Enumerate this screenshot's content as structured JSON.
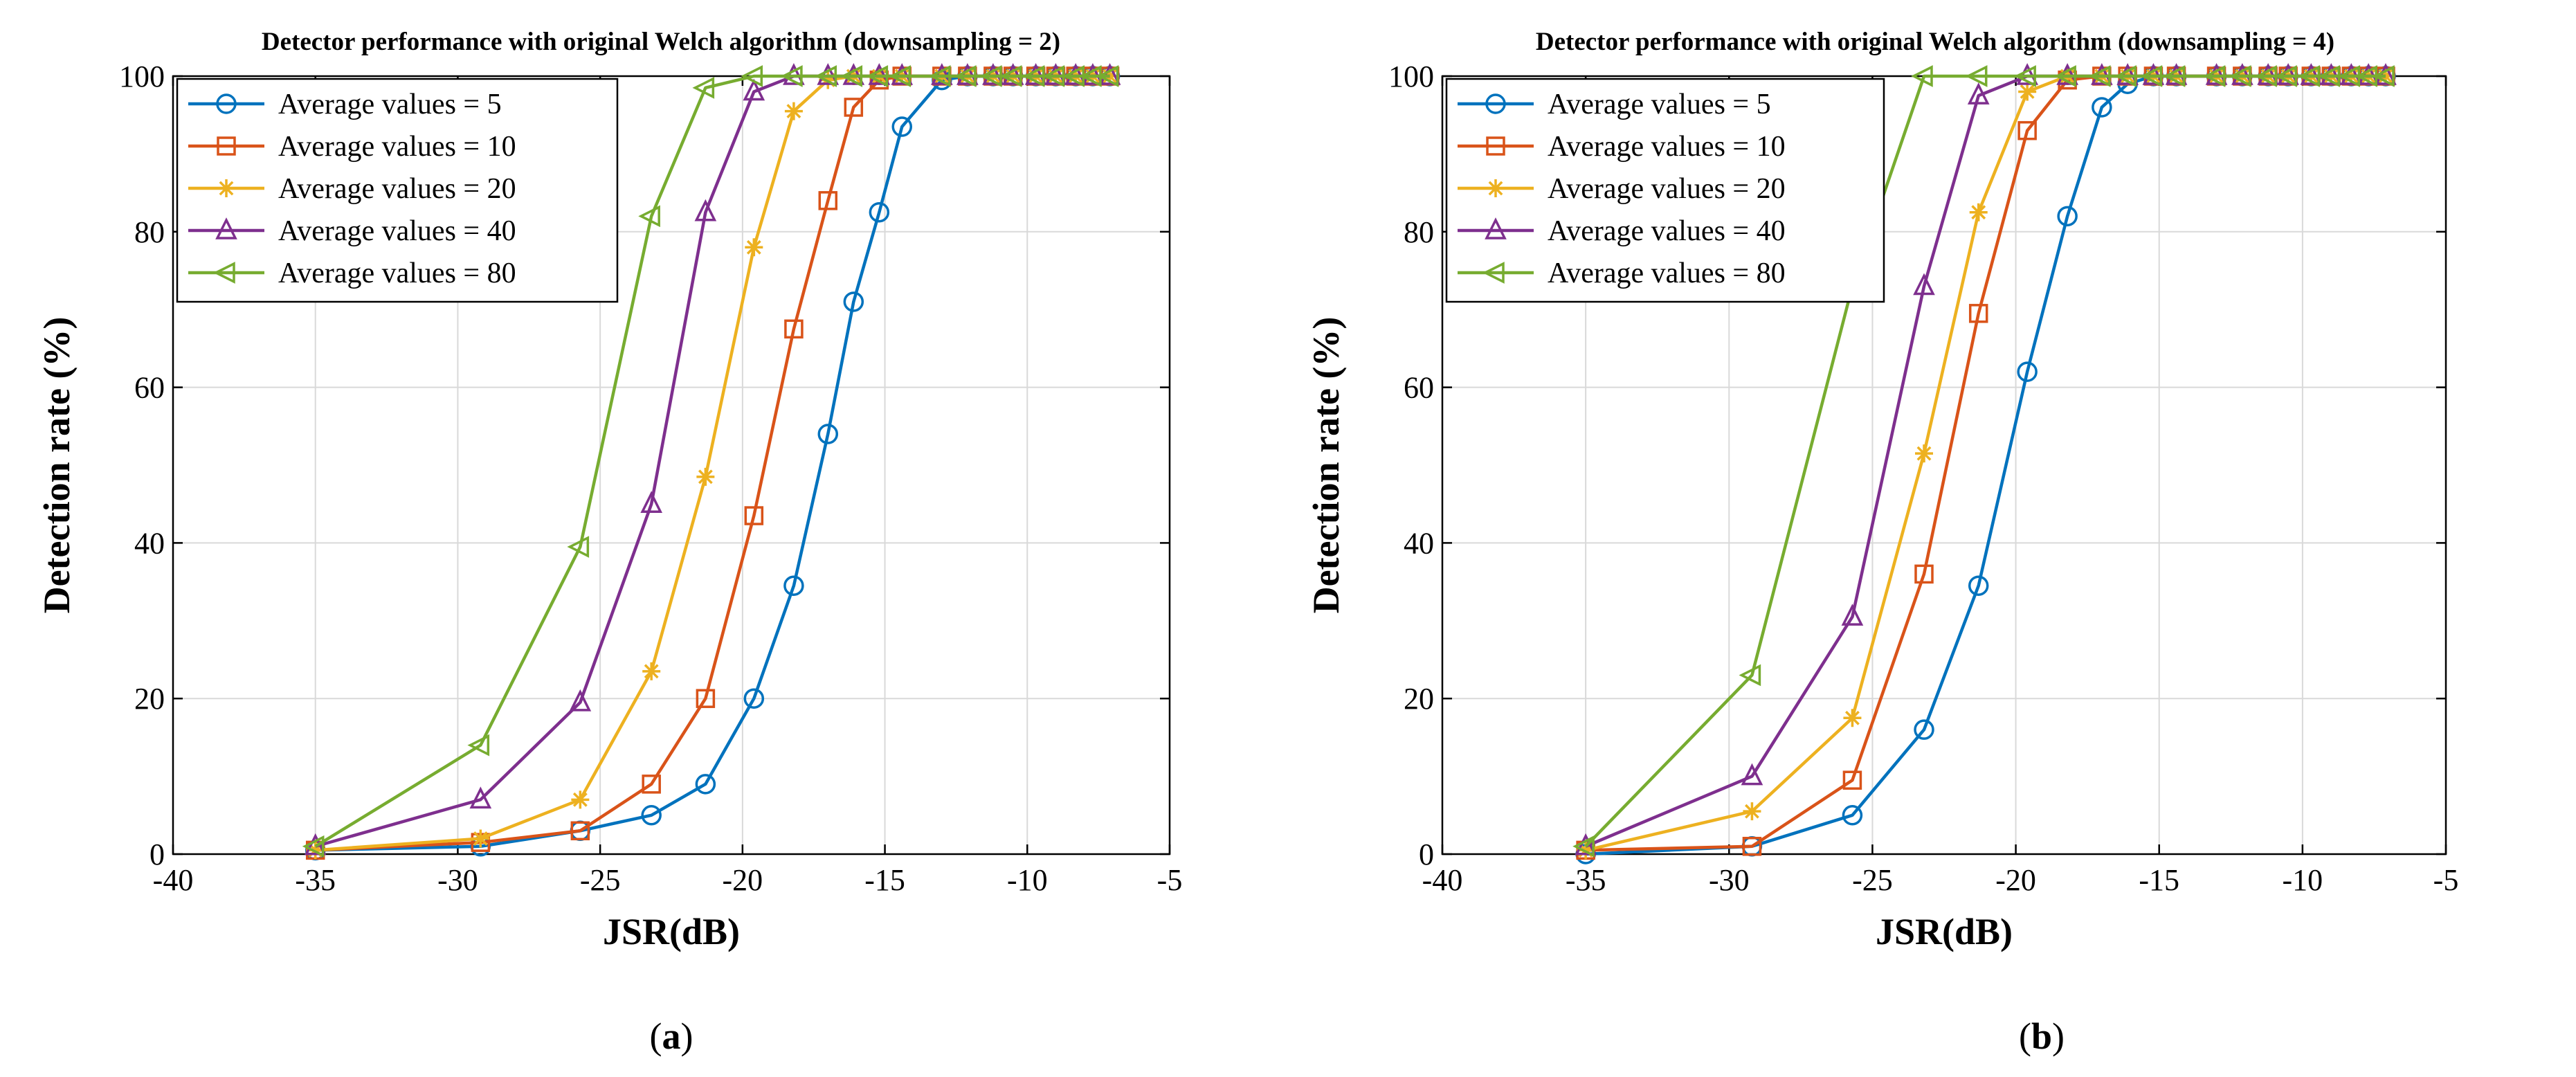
{
  "chart_data": [
    {
      "type": "line",
      "panel_label": "a",
      "title": "Detector performance with original Welch algorithm (downsampling = 2)",
      "xlabel": "JSR(dB)",
      "ylabel": "Detection rate (%)",
      "xlim": [
        -40,
        -5
      ],
      "ylim": [
        0,
        100
      ],
      "xticks": [
        -40,
        -35,
        -30,
        -25,
        -20,
        -15,
        -10,
        -5
      ],
      "yticks": [
        0,
        20,
        40,
        60,
        80,
        100
      ],
      "grid": true,
      "legend_position": "top-left",
      "series": [
        {
          "name": "Average values = 5",
          "color": "#0072BD",
          "marker": "circle",
          "x": [
            -35,
            -29.2,
            -25.7,
            -23.2,
            -21.3,
            -19.6,
            -18.2,
            -17.0,
            -16.1,
            -15.2,
            -14.4,
            -13.0,
            -12.1,
            -11.2,
            -10.5,
            -9.7,
            -9.0,
            -8.3,
            -7.7,
            -7.1
          ],
          "y": [
            0.5,
            1,
            3,
            5,
            9,
            20,
            34.5,
            54,
            71,
            82.5,
            93.5,
            99.5,
            100,
            100,
            100,
            100,
            100,
            100,
            100,
            100
          ]
        },
        {
          "name": "Average values = 10",
          "color": "#D95319",
          "marker": "square",
          "x": [
            -35,
            -29.2,
            -25.7,
            -23.2,
            -21.3,
            -19.6,
            -18.2,
            -17.0,
            -16.1,
            -15.2,
            -14.4,
            -13.0,
            -12.1,
            -11.2,
            -10.5,
            -9.7,
            -9.0,
            -8.3,
            -7.7,
            -7.1
          ],
          "y": [
            0.5,
            1.5,
            3,
            9,
            20,
            43.5,
            67.5,
            84,
            96,
            99.5,
            100,
            100,
            100,
            100,
            100,
            100,
            100,
            100,
            100,
            100
          ]
        },
        {
          "name": "Average values = 20",
          "color": "#EDB120",
          "marker": "star",
          "x": [
            -35,
            -29.2,
            -25.7,
            -23.2,
            -21.3,
            -19.6,
            -18.2,
            -17.0,
            -16.1,
            -15.2,
            -14.4,
            -13.0,
            -12.1,
            -11.2,
            -10.5,
            -9.7,
            -9.0,
            -8.3,
            -7.7,
            -7.1
          ],
          "y": [
            0.5,
            2,
            7,
            23.5,
            48.5,
            78,
            95.5,
            99.5,
            100,
            100,
            100,
            100,
            100,
            100,
            100,
            100,
            100,
            100,
            100,
            100
          ]
        },
        {
          "name": "Average values = 40",
          "color": "#7E2F8E",
          "marker": "triangle-up",
          "x": [
            -35,
            -29.2,
            -25.7,
            -23.2,
            -21.3,
            -19.6,
            -18.2,
            -17.0,
            -16.1,
            -15.2,
            -14.4,
            -13.0,
            -12.1,
            -11.2,
            -10.5,
            -9.7,
            -9.0,
            -8.3,
            -7.7,
            -7.1
          ],
          "y": [
            1,
            7,
            19.5,
            45,
            82.5,
            98,
            100,
            100,
            100,
            100,
            100,
            100,
            100,
            100,
            100,
            100,
            100,
            100,
            100,
            100
          ]
        },
        {
          "name": "Average values = 80",
          "color": "#77AC30",
          "marker": "triangle-left",
          "x": [
            -35,
            -29.2,
            -25.7,
            -23.2,
            -21.3,
            -19.6,
            -18.2,
            -17.0,
            -16.1,
            -15.2,
            -14.4,
            -13.0,
            -12.1,
            -11.2,
            -10.5,
            -9.7,
            -9.0,
            -8.3,
            -7.7,
            -7.1
          ],
          "y": [
            1,
            14,
            39.5,
            82,
            98.5,
            100,
            100,
            100,
            100,
            100,
            100,
            100,
            100,
            100,
            100,
            100,
            100,
            100,
            100,
            100
          ]
        }
      ]
    },
    {
      "type": "line",
      "panel_label": "b",
      "title": "Detector performance with original Welch algorithm (downsampling = 4)",
      "xlabel": "JSR(dB)",
      "ylabel": "Detection rate (%)",
      "xlim": [
        -40,
        -5
      ],
      "ylim": [
        0,
        100
      ],
      "xticks": [
        -40,
        -35,
        -30,
        -25,
        -20,
        -15,
        -10,
        -5
      ],
      "yticks": [
        0,
        20,
        40,
        60,
        80,
        100
      ],
      "grid": true,
      "legend_position": "top-left",
      "series": [
        {
          "name": "Average values = 5",
          "color": "#0072BD",
          "marker": "circle",
          "x": [
            -35,
            -29.2,
            -25.7,
            -23.2,
            -21.3,
            -19.6,
            -18.2,
            -17.0,
            -16.1,
            -15.2,
            -14.4,
            -13.0,
            -12.1,
            -11.2,
            -10.5,
            -9.7,
            -9.0,
            -8.3,
            -7.7,
            -7.1
          ],
          "y": [
            0,
            1,
            5,
            16,
            34.5,
            62,
            82,
            96,
            99,
            100,
            100,
            100,
            100,
            100,
            100,
            100,
            100,
            100,
            100,
            100
          ]
        },
        {
          "name": "Average values = 10",
          "color": "#D95319",
          "marker": "square",
          "x": [
            -35,
            -29.2,
            -25.7,
            -23.2,
            -21.3,
            -19.6,
            -18.2,
            -17.0,
            -16.1,
            -15.2,
            -14.4,
            -13.0,
            -12.1,
            -11.2,
            -10.5,
            -9.7,
            -9.0,
            -8.3,
            -7.7,
            -7.1
          ],
          "y": [
            0.5,
            1,
            9.5,
            36,
            69.5,
            93,
            99.5,
            100,
            100,
            100,
            100,
            100,
            100,
            100,
            100,
            100,
            100,
            100,
            100,
            100
          ]
        },
        {
          "name": "Average values = 20",
          "color": "#EDB120",
          "marker": "star",
          "x": [
            -35,
            -29.2,
            -25.7,
            -23.2,
            -21.3,
            -19.6,
            -18.2,
            -17.0,
            -16.1,
            -15.2,
            -14.4,
            -13.0,
            -12.1,
            -11.2,
            -10.5,
            -9.7,
            -9.0,
            -8.3,
            -7.7,
            -7.1
          ],
          "y": [
            0.5,
            5.5,
            17.5,
            51.5,
            82.5,
            98,
            100,
            100,
            100,
            100,
            100,
            100,
            100,
            100,
            100,
            100,
            100,
            100,
            100,
            100
          ]
        },
        {
          "name": "Average values = 40",
          "color": "#7E2F8E",
          "marker": "triangle-up",
          "x": [
            -35,
            -29.2,
            -25.7,
            -23.2,
            -21.3,
            -19.6,
            -18.2,
            -17.0,
            -16.1,
            -15.2,
            -14.4,
            -13.0,
            -12.1,
            -11.2,
            -10.5,
            -9.7,
            -9.0,
            -8.3,
            -7.7,
            -7.1
          ],
          "y": [
            1,
            10,
            30.5,
            73,
            97.5,
            100,
            100,
            100,
            100,
            100,
            100,
            100,
            100,
            100,
            100,
            100,
            100,
            100,
            100,
            100
          ]
        },
        {
          "name": "Average values = 80",
          "color": "#77AC30",
          "marker": "triangle-left",
          "x": [
            -35,
            -29.2,
            -25.7,
            -23.2,
            -21.3,
            -19.6,
            -18.2,
            -17.0,
            -16.1,
            -15.2,
            -14.4,
            -13.0,
            -12.1,
            -11.2,
            -10.5,
            -9.7,
            -9.0,
            -8.3,
            -7.7,
            -7.1
          ],
          "y": [
            1,
            23,
            73,
            100,
            100,
            100,
            100,
            100,
            100,
            100,
            100,
            100,
            100,
            100,
            100,
            100,
            100,
            100,
            100,
            100
          ]
        }
      ]
    }
  ]
}
